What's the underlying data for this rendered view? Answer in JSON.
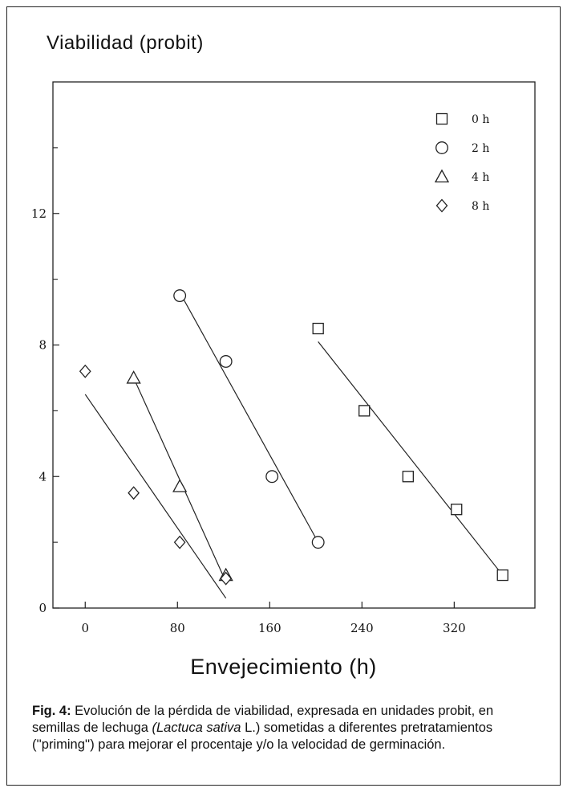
{
  "chart_data": {
    "type": "scatter",
    "ylabel": "Viabilidad (probit)",
    "xlabel": "Envejecimiento (h)",
    "xlim": [
      -28,
      390
    ],
    "ylim": [
      0,
      16
    ],
    "x_ticks": [
      0,
      80,
      160,
      240,
      320
    ],
    "y_ticks": [
      0,
      4,
      8,
      12
    ],
    "y_minor_ticks": [
      2,
      6,
      10,
      14
    ],
    "grid": false,
    "legend_position": "top-right",
    "series": [
      {
        "name": "0 h",
        "marker": "square",
        "points": [
          [
            202,
            8.5
          ],
          [
            242,
            6.0
          ],
          [
            280,
            4.0
          ],
          [
            322,
            3.0
          ],
          [
            362,
            1.0
          ]
        ],
        "fit_line": [
          [
            202,
            8.1
          ],
          [
            362,
            1.0
          ]
        ]
      },
      {
        "name": "2 h",
        "marker": "circle",
        "points": [
          [
            82,
            9.5
          ],
          [
            122,
            7.5
          ],
          [
            162,
            4.0
          ],
          [
            202,
            2.0
          ]
        ],
        "fit_line": [
          [
            82,
            9.6
          ],
          [
            202,
            2.0
          ]
        ]
      },
      {
        "name": "4 h",
        "marker": "triangle",
        "points": [
          [
            42,
            7.0
          ],
          [
            82,
            3.7
          ],
          [
            122,
            1.0
          ]
        ],
        "fit_line": [
          [
            42,
            7.0
          ],
          [
            122,
            0.8
          ]
        ]
      },
      {
        "name": "8 h",
        "marker": "diamond",
        "points": [
          [
            0,
            7.2
          ],
          [
            42,
            3.5
          ],
          [
            82,
            2.0
          ],
          [
            122,
            0.9
          ]
        ],
        "fit_line": [
          [
            0,
            6.5
          ],
          [
            122,
            0.3
          ]
        ]
      }
    ]
  },
  "caption": {
    "label": "Fig. 4:",
    "text_before": " Evolución de la pérdida de viabilidad, expresada en unidades probit, en semillas de lechuga ",
    "species": "(Lactuca sativa",
    "text_after": " L.) sometidas a diferentes pretratamientos (''priming'') para mejorar el procentaje y/o la velocidad de germinación."
  }
}
